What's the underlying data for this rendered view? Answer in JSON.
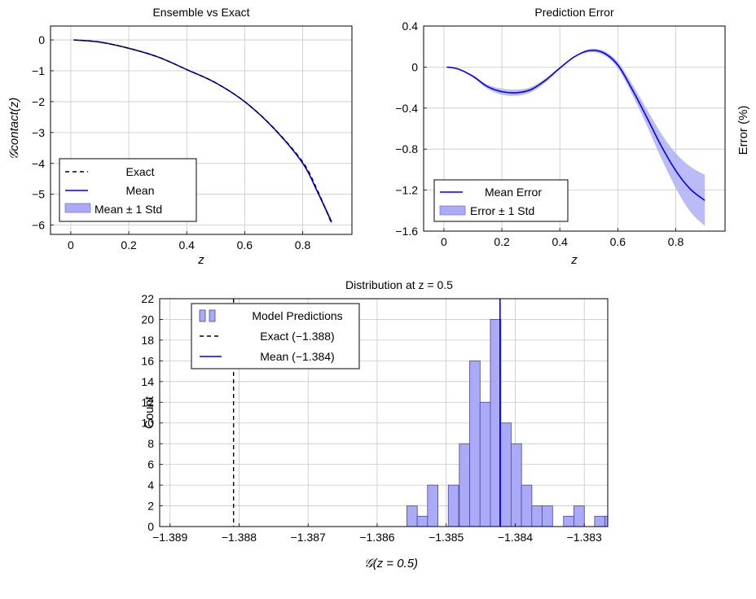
{
  "chart_data": [
    {
      "type": "line",
      "title": "Ensemble vs Exact",
      "xlabel": "z",
      "ylabel": "𝒢contact(z)",
      "xlim": [
        -0.07,
        0.97
      ],
      "ylim": [
        -6.3,
        0.45
      ],
      "xticks": [
        "0",
        "0.2",
        "0.4",
        "0.6",
        "0.8"
      ],
      "yticks": [
        "0",
        "−1",
        "−2",
        "−3",
        "−4",
        "−5",
        "−6"
      ],
      "grid": true,
      "legend_position": "bottom-left",
      "legend": [
        "Exact",
        "Mean",
        "Mean ± 1 Std"
      ],
      "x": [
        0.01,
        0.1,
        0.2,
        0.3,
        0.4,
        0.5,
        0.6,
        0.7,
        0.8,
        0.85,
        0.9
      ],
      "series": [
        {
          "name": "Exact",
          "values": [
            0.0,
            -0.07,
            -0.27,
            -0.55,
            -0.96,
            -1.39,
            -2.0,
            -2.85,
            -3.95,
            -4.85,
            -5.95
          ]
        },
        {
          "name": "Mean",
          "values": [
            0.0,
            -0.07,
            -0.27,
            -0.55,
            -0.96,
            -1.39,
            -2.0,
            -2.86,
            -3.99,
            -4.9,
            -5.9
          ]
        }
      ],
      "band": {
        "name": "Mean ± 1 Std",
        "half_width": [
          0.0,
          0.0,
          0.0,
          0.0,
          0.0,
          0.0,
          0.01,
          0.01,
          0.03,
          0.05,
          0.08
        ]
      }
    },
    {
      "type": "line",
      "title": "Prediction Error",
      "xlabel": "z",
      "ylabel": "Error (%)",
      "xlim": [
        -0.07,
        0.97
      ],
      "ylim": [
        -1.6,
        0.4
      ],
      "xticks": [
        "0",
        "0.2",
        "0.4",
        "0.6",
        "0.8"
      ],
      "yticks": [
        "0.4",
        "0",
        "−0.4",
        "−0.8",
        "−1.2",
        "−1.6"
      ],
      "grid": true,
      "legend_position": "bottom-left",
      "legend": [
        "Mean Error",
        "Error ± 1 Std"
      ],
      "x": [
        0.01,
        0.05,
        0.1,
        0.15,
        0.2,
        0.25,
        0.3,
        0.35,
        0.4,
        0.45,
        0.5,
        0.55,
        0.6,
        0.65,
        0.7,
        0.75,
        0.8,
        0.85,
        0.9
      ],
      "series": [
        {
          "name": "Mean Error",
          "values": [
            0.0,
            -0.02,
            -0.09,
            -0.19,
            -0.24,
            -0.25,
            -0.22,
            -0.13,
            -0.01,
            0.1,
            0.16,
            0.14,
            0.02,
            -0.22,
            -0.49,
            -0.77,
            -1.01,
            -1.19,
            -1.3
          ]
        }
      ],
      "band": {
        "name": "Error ± 1 Std",
        "half_width": [
          0.0,
          0.005,
          0.01,
          0.02,
          0.03,
          0.03,
          0.025,
          0.02,
          0.01,
          0.005,
          0.015,
          0.02,
          0.03,
          0.05,
          0.08,
          0.12,
          0.17,
          0.22,
          0.25
        ]
      }
    },
    {
      "type": "bar",
      "subtype": "histogram",
      "title": "Distribution at z = 0.5",
      "xlabel": "𝒢(z = 0.5)",
      "ylabel": "Count",
      "xlim": [
        -1.38915,
        -1.38266
      ],
      "ylim": [
        0,
        22
      ],
      "xticks": [
        "−1.389",
        "−1.388",
        "−1.387",
        "−1.386",
        "−1.385",
        "−1.384",
        "−1.383"
      ],
      "yticks": [
        "0",
        "2",
        "4",
        "6",
        "8",
        "10",
        "12",
        "14",
        "16",
        "18",
        "20",
        "22"
      ],
      "grid": true,
      "legend_position": "top-left",
      "legend": [
        "Model Predictions",
        "Exact (−1.388)",
        "Mean (−1.384)"
      ],
      "bin_width": 0.000151,
      "bin_left_edges": [
        -1.38557,
        -1.38542,
        -1.38527,
        -1.38512,
        -1.38497,
        -1.38481,
        -1.38466,
        -1.38451,
        -1.38436,
        -1.38421,
        -1.38406,
        -1.38391,
        -1.38376,
        -1.38361,
        -1.38345,
        -1.3833,
        -1.38315,
        -1.383,
        -1.38285,
        -1.3827
      ],
      "counts": [
        2,
        1,
        4,
        0,
        4,
        8,
        16,
        12,
        20,
        10,
        8,
        4,
        2,
        2,
        0,
        1,
        2,
        0,
        1,
        1
      ],
      "exact_value": -1.38808,
      "mean_value": -1.38422
    }
  ]
}
